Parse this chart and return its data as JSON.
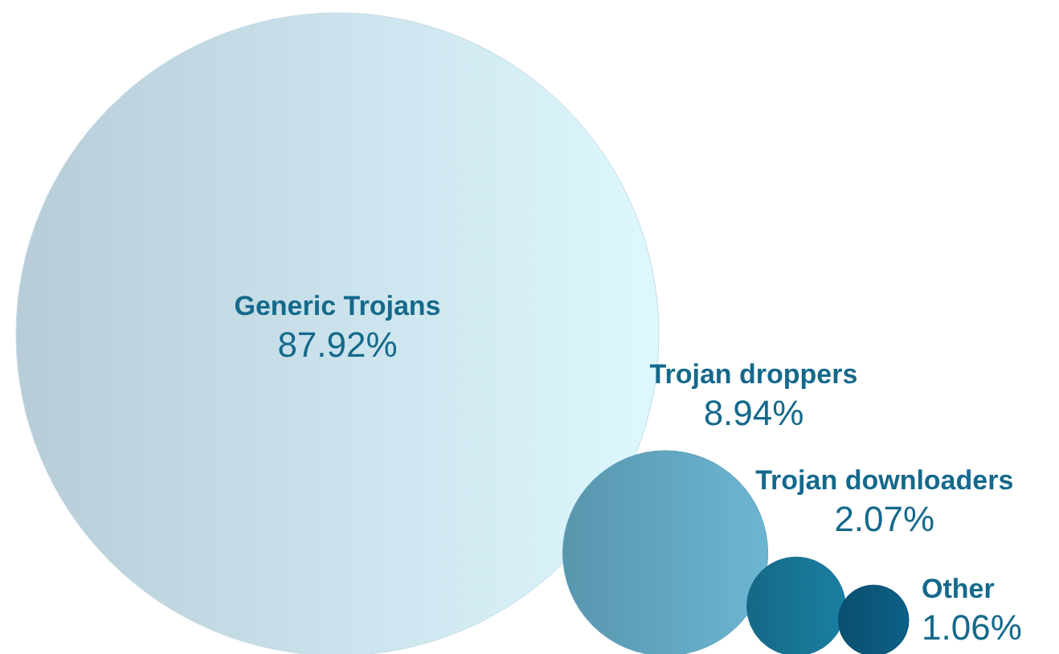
{
  "chart_data": {
    "type": "other",
    "categories": [
      "Generic Trojans",
      "Trojan droppers",
      "Trojan downloaders",
      "Other"
    ],
    "values": [
      87.92,
      8.94,
      2.07,
      1.06
    ],
    "value_labels": [
      "87.92%",
      "8.94%",
      "2.07%",
      "1.06%"
    ],
    "colors": [
      "#c4dbe7",
      "#5fa1ba",
      "#17708f",
      "#0b5577"
    ]
  }
}
